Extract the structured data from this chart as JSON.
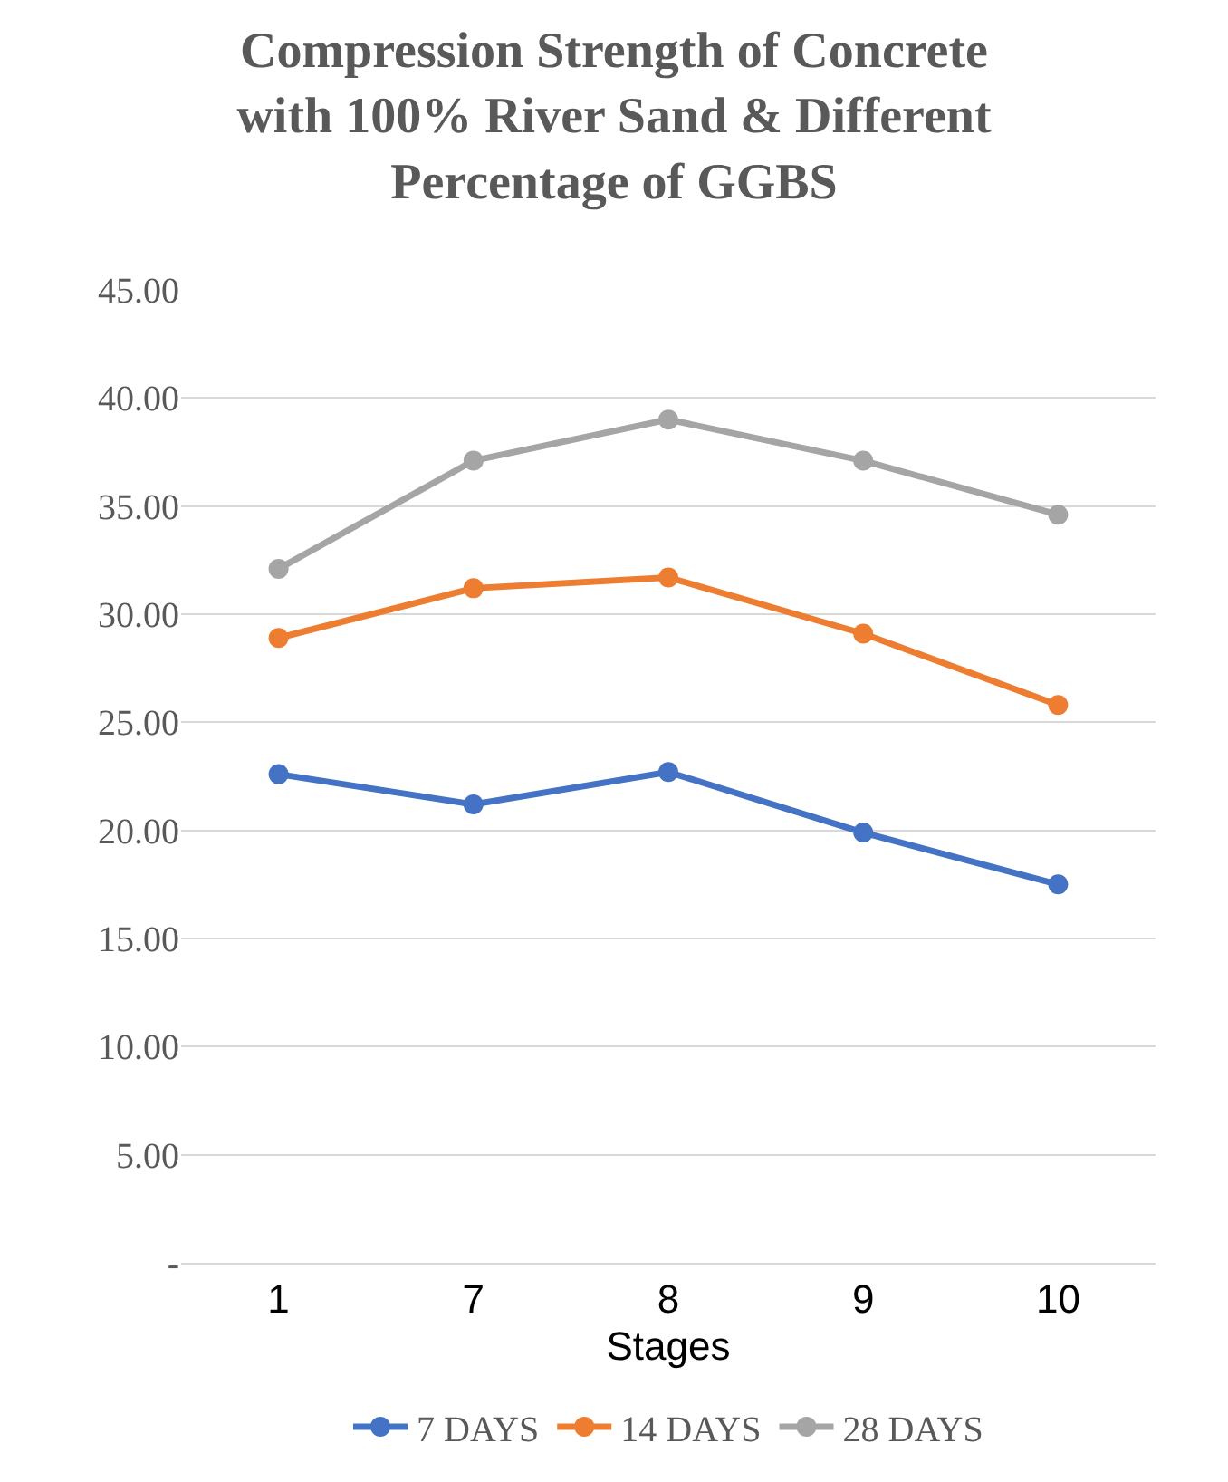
{
  "chart_data": {
    "type": "line",
    "title": "Compression Strength of Concrete with 100% River Sand & Different Percentage of GGBS",
    "xlabel": "Stages",
    "categories": [
      "1",
      "7",
      "8",
      "9",
      "10"
    ],
    "series": [
      {
        "name": "7 DAYS",
        "color": "#4472c4",
        "values": [
          22.6,
          21.2,
          22.7,
          19.9,
          17.5
        ]
      },
      {
        "name": "14 DAYS",
        "color": "#ed7d31",
        "values": [
          28.9,
          31.2,
          31.7,
          29.1,
          25.8
        ]
      },
      {
        "name": "28 DAYS",
        "color": "#a5a5a5",
        "values": [
          32.1,
          37.1,
          39.0,
          37.1,
          34.6
        ]
      }
    ],
    "ylim": [
      0,
      45
    ],
    "yticks": [
      {
        "value": 0,
        "label": "-"
      },
      {
        "value": 5,
        "label": "5.00"
      },
      {
        "value": 10,
        "label": "10.00"
      },
      {
        "value": 15,
        "label": "15.00"
      },
      {
        "value": 20,
        "label": "20.00"
      },
      {
        "value": 25,
        "label": "25.00"
      },
      {
        "value": 30,
        "label": "30.00"
      },
      {
        "value": 35,
        "label": "35.00"
      },
      {
        "value": 40,
        "label": "40.00"
      },
      {
        "value": 45,
        "label": "45.00"
      }
    ],
    "grid": "y",
    "legend": "bottom",
    "marker": "circle",
    "line_style": "solid"
  }
}
